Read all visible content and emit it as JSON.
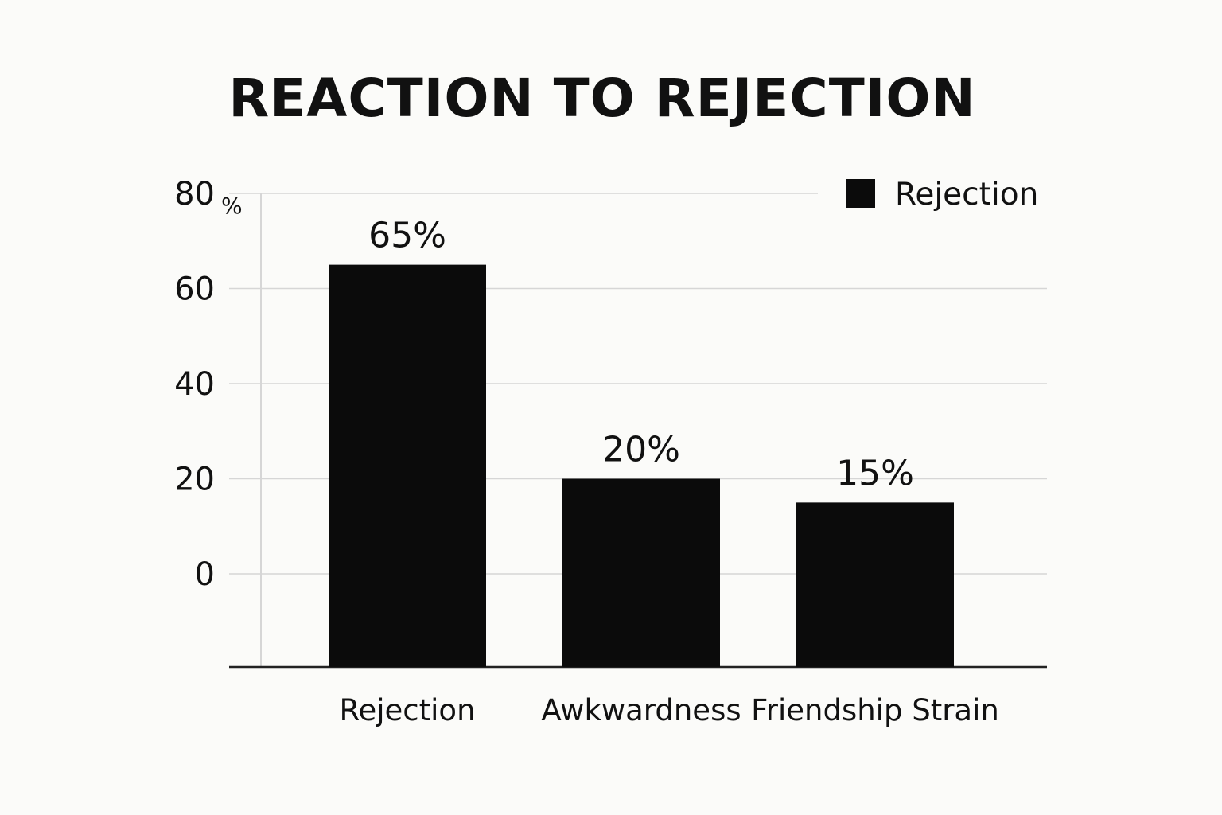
{
  "chart_data": {
    "type": "bar",
    "title": "REACTION TO REJECTION",
    "categories": [
      "Rejection",
      "Awkwardness",
      "Friendship Strain"
    ],
    "series": [
      {
        "name": "Rejection",
        "values": [
          65,
          20,
          15
        ],
        "color": "#0b0b0b"
      }
    ],
    "data_labels": [
      "65%",
      "20%",
      "15%"
    ],
    "y_ticks": [
      0,
      20,
      40,
      60,
      80
    ],
    "y_tick_labels": [
      "0",
      "20",
      "40",
      "60",
      "80"
    ],
    "y_unit_label": "%",
    "ylim": [
      0,
      80
    ],
    "xlabel": "",
    "ylabel": "",
    "grid": true,
    "legend_position": "top-right",
    "colors": {
      "bar": "#0b0b0b",
      "grid": "#d6d6d6",
      "axis": "#222222",
      "background": "#fbfbf9"
    }
  }
}
